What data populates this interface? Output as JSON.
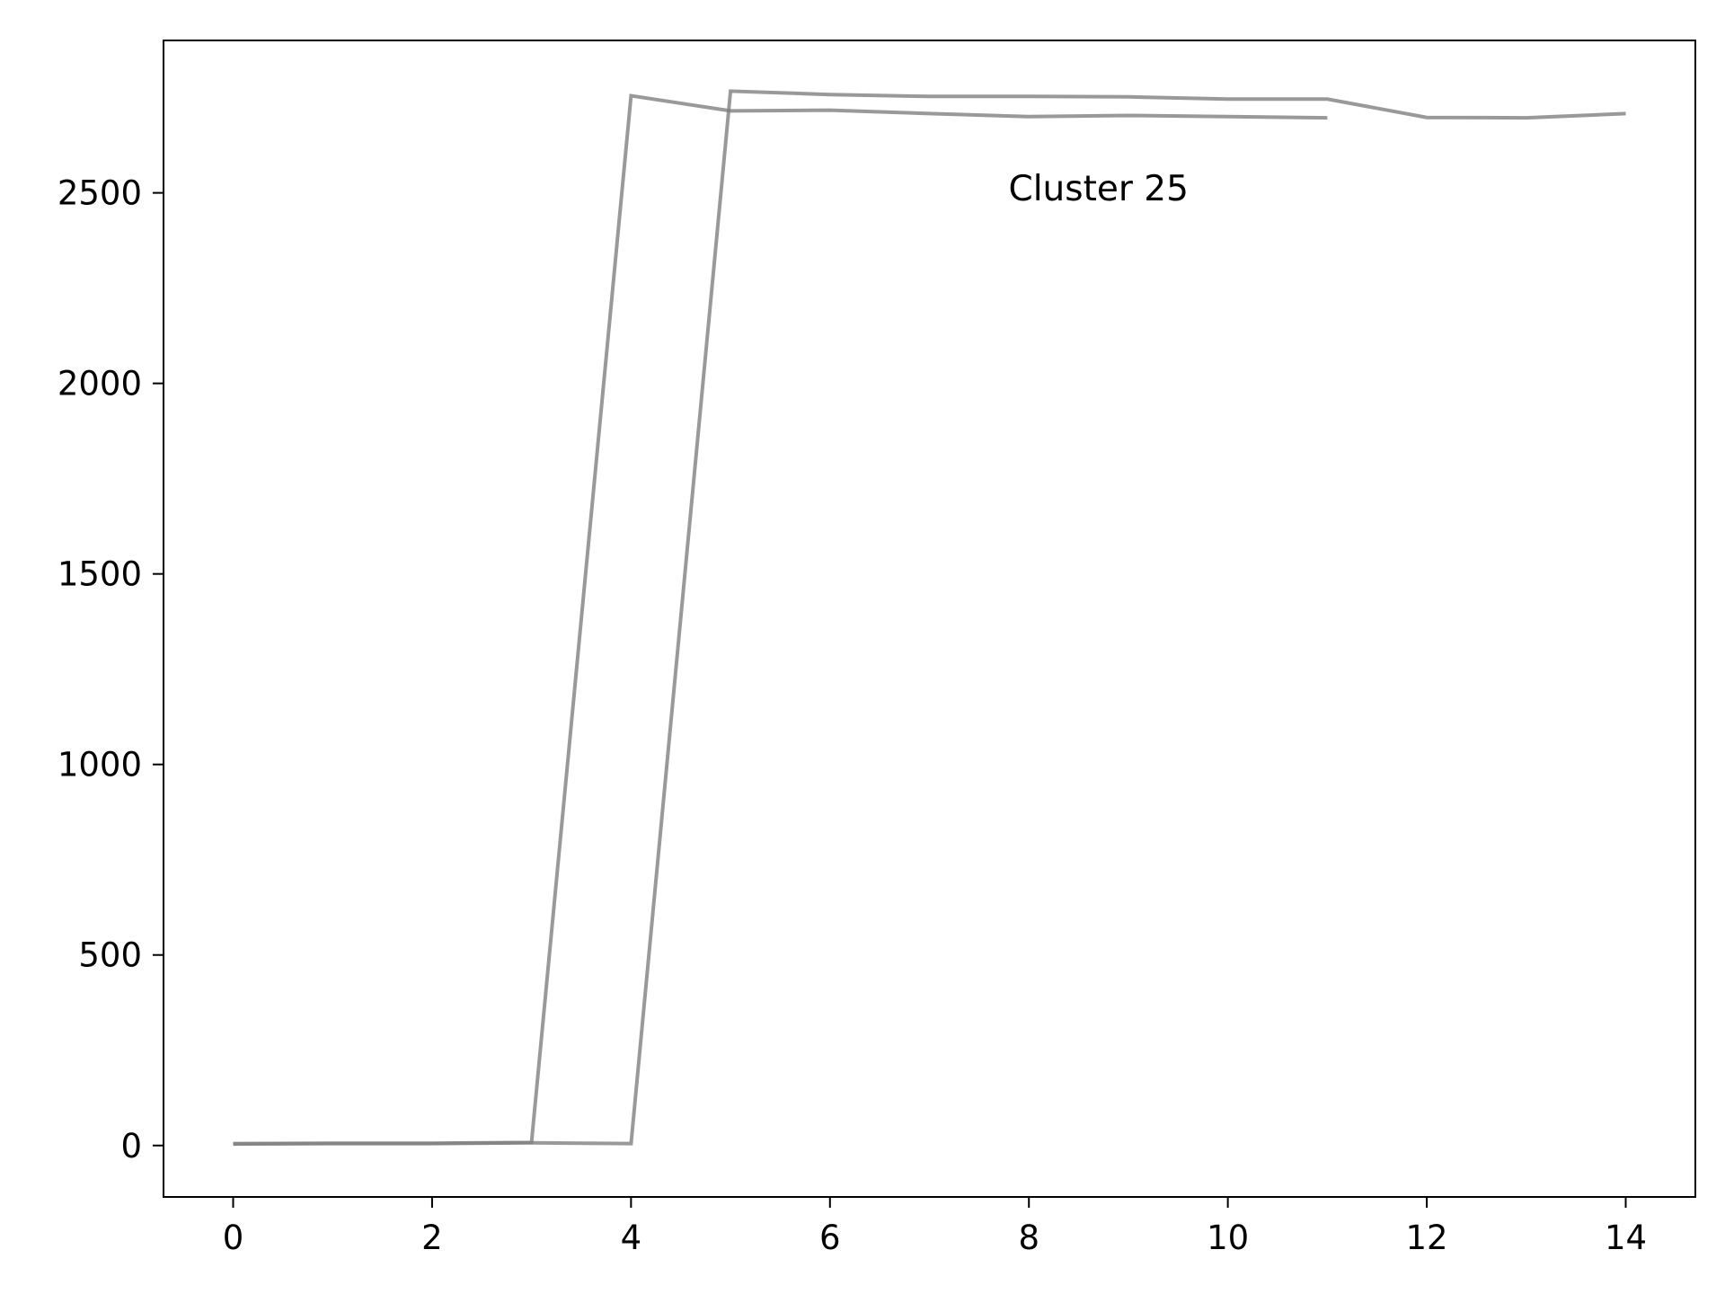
{
  "chart_data": {
    "type": "line",
    "title": "",
    "xlabel": "",
    "ylabel": "",
    "xlim": [
      -0.7,
      14.7
    ],
    "ylim": [
      -135,
      2900
    ],
    "x_ticks": [
      0,
      2,
      4,
      6,
      8,
      10,
      12,
      14
    ],
    "y_ticks": [
      0,
      500,
      1000,
      1500,
      2000,
      2500
    ],
    "x_tick_labels": [
      "0",
      "2",
      "4",
      "6",
      "8",
      "10",
      "12",
      "14"
    ],
    "y_tick_labels": [
      "0",
      "500",
      "1000",
      "1500",
      "2000",
      "2500"
    ],
    "grid": false,
    "legend": "none",
    "annotation": {
      "text": "Cluster 25",
      "x": 8.7,
      "y": 2480
    },
    "line_color": "#808080",
    "line_opacity": 0.8,
    "series": [
      {
        "x": [
          0,
          1,
          2,
          3,
          4,
          5,
          6,
          7,
          8,
          9,
          10,
          11
        ],
        "values": [
          5,
          6,
          6,
          8,
          2755,
          2715,
          2717,
          2708,
          2700,
          2703,
          2700,
          2697
        ]
      },
      {
        "x": [
          0,
          1,
          2,
          3,
          4,
          5,
          6,
          7,
          8,
          9,
          10,
          11,
          12,
          13,
          14
        ],
        "values": [
          4,
          5,
          5,
          7,
          5,
          2767,
          2758,
          2753,
          2753,
          2752,
          2746,
          2746,
          2698,
          2697,
          2708
        ]
      }
    ]
  }
}
